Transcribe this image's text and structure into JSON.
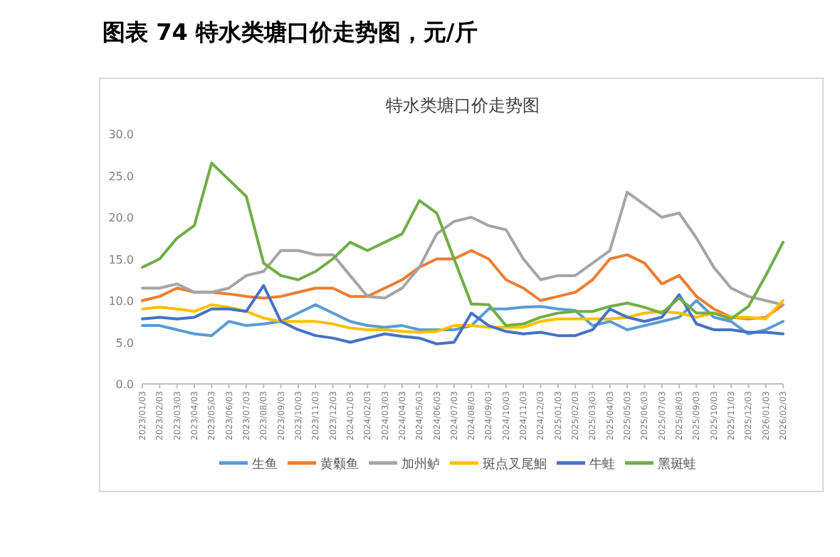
{
  "chart_data": {
    "type": "line",
    "title": "图表 74 特水类塘口价走势图，元/斤",
    "subtitle": "特水类塘口价走势图",
    "categories": [
      "2023/01/03",
      "2023/02/03",
      "2023/03/03",
      "2023/04/03",
      "2023/05/03",
      "2023/06/03",
      "2023/07/03",
      "2023/08/03",
      "2023/09/03",
      "2023/10/03",
      "2023/11/03",
      "2023/12/03",
      "2024/01/03",
      "2024/02/03",
      "2024/03/03",
      "2024/04/03",
      "2024/05/03",
      "2024/06/03",
      "2024/07/03",
      "2024/08/03",
      "2024/09/03",
      "2024/10/03",
      "2024/11/03",
      "2024/12/03",
      "2025/01/03",
      "2025/02/03",
      "2025/03/03",
      "2025/04/03",
      "2025/05/03",
      "2025/06/03",
      "2025/07/03",
      "2025/08/03",
      "2025/09/03",
      "2025/10/03",
      "2025/11/03",
      "2025/12/03",
      "2026/01/03",
      "2026/02/03"
    ],
    "series": [
      {
        "name": "生鱼",
        "color": "#5b9bd5",
        "values": [
          7,
          7,
          6.5,
          6,
          5.8,
          7.5,
          7,
          7.2,
          7.5,
          8.5,
          9.5,
          8.5,
          7.5,
          7,
          6.8,
          7,
          6.5,
          6.5,
          6.5,
          7,
          9,
          9,
          9.2,
          9.3,
          9,
          8.8,
          7,
          7.5,
          6.5,
          7,
          7.5,
          8,
          10,
          8,
          7.5,
          6,
          6.5,
          7.5
        ]
      },
      {
        "name": "黄颡鱼",
        "color": "#ed7d31",
        "values": [
          10,
          10.5,
          11.5,
          11,
          11,
          10.8,
          10.5,
          10.3,
          10.5,
          11,
          11.5,
          11.5,
          10.5,
          10.5,
          11.5,
          12.5,
          14,
          15,
          15,
          16,
          15,
          12.5,
          11.5,
          10,
          10.5,
          11,
          12.5,
          15,
          15.5,
          14.5,
          12,
          13,
          10.5,
          9,
          8,
          7.8,
          8,
          9.5
        ]
      },
      {
        "name": "加州鲈",
        "color": "#a5a5a5",
        "values": [
          11.5,
          11.5,
          12,
          11,
          11,
          11.5,
          13,
          13.5,
          16,
          16,
          15.5,
          15.5,
          13,
          10.5,
          10.3,
          11.5,
          14,
          18,
          19.5,
          20,
          19,
          18.5,
          15,
          12.5,
          13,
          13,
          14.5,
          16,
          23,
          21.5,
          20,
          20.5,
          17.5,
          14,
          11.5,
          10.5,
          10,
          9.5
        ]
      },
      {
        "name": "斑点叉尾鮰",
        "color": "#ffc000",
        "values": [
          9,
          9.2,
          9,
          8.7,
          9.5,
          9.2,
          8.7,
          7.9,
          7.5,
          7.5,
          7.5,
          7.2,
          6.7,
          6.5,
          6.5,
          6.3,
          6.2,
          6.3,
          7,
          7,
          6.8,
          6.8,
          6.8,
          7.5,
          7.8,
          7.8,
          7.8,
          7.8,
          8,
          8.5,
          8.7,
          8.5,
          8,
          8.5,
          8,
          8,
          7.8,
          10
        ]
      },
      {
        "name": "牛蛙",
        "color": "#4472c4",
        "values": [
          7.8,
          8,
          7.8,
          8,
          9,
          9,
          8.7,
          11.8,
          7.5,
          6.5,
          5.8,
          5.5,
          5,
          5.5,
          6,
          5.7,
          5.5,
          4.8,
          5,
          8.5,
          7,
          6.3,
          6,
          6.2,
          5.8,
          5.8,
          6.5,
          9,
          8,
          7.5,
          8,
          10.7,
          7.2,
          6.5,
          6.5,
          6.2,
          6.2,
          6
        ]
      },
      {
        "name": "黑斑蛙",
        "color": "#70ad47",
        "values": [
          14,
          15,
          17.5,
          19,
          26.5,
          24.5,
          22.5,
          14.5,
          13,
          12.5,
          13.5,
          15,
          17,
          16,
          17,
          18,
          22,
          20.5,
          15,
          9.6,
          9.5,
          7,
          7.2,
          8,
          8.5,
          8.7,
          8.7,
          9.3,
          9.7,
          9.2,
          8.5,
          10.3,
          8.5,
          8.5,
          7.8,
          9.3,
          13,
          17
        ]
      }
    ],
    "ylim": [
      0,
      30
    ],
    "yticks": [
      {
        "value": 0,
        "label": "0.0"
      },
      {
        "value": 5,
        "label": "5.0"
      },
      {
        "value": 10,
        "label": "10.0"
      },
      {
        "value": 15,
        "label": "15.0"
      },
      {
        "value": 20,
        "label": "20.0"
      },
      {
        "value": 25,
        "label": "25.0"
      },
      {
        "value": 30,
        "label": "30.0"
      }
    ],
    "grid": false,
    "legend": "bottom",
    "marker": "none",
    "line_style": "solid"
  }
}
